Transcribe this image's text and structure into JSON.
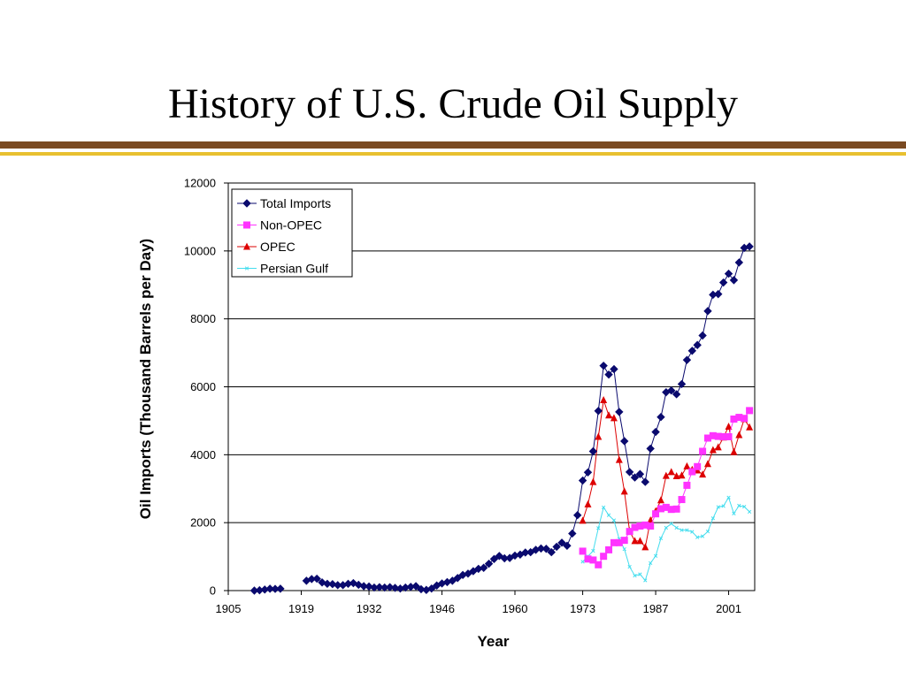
{
  "slide": {
    "title": "History of U.S. Crude Oil Supply",
    "rule_colors": [
      "#7a4a22",
      "#e8c030"
    ]
  },
  "chart_data": {
    "type": "line",
    "title": "",
    "xlabel": "Year",
    "ylabel": "Oil Imports (Thousand Barrels per Day)",
    "xlim": [
      1905,
      2006
    ],
    "ylim": [
      0,
      12000
    ],
    "x_ticks": [
      1905,
      1919,
      1932,
      1946,
      1960,
      1973,
      1987,
      2001
    ],
    "y_ticks": [
      0,
      2000,
      4000,
      6000,
      8000,
      10000,
      12000
    ],
    "grid": "horizontal",
    "legend_position": "top-left",
    "series": [
      {
        "name": "Total Imports",
        "color": "#0a0a6e",
        "marker": "diamond",
        "points": [
          [
            1910,
            0
          ],
          [
            1911,
            10
          ],
          [
            1912,
            30
          ],
          [
            1913,
            55
          ],
          [
            1914,
            50
          ],
          [
            1915,
            55
          ],
          [
            1920,
            290
          ],
          [
            1921,
            340
          ],
          [
            1922,
            350
          ],
          [
            1923,
            240
          ],
          [
            1924,
            200
          ],
          [
            1925,
            190
          ],
          [
            1926,
            160
          ],
          [
            1927,
            160
          ],
          [
            1928,
            200
          ],
          [
            1929,
            220
          ],
          [
            1930,
            170
          ],
          [
            1931,
            130
          ],
          [
            1932,
            120
          ],
          [
            1933,
            90
          ],
          [
            1934,
            100
          ],
          [
            1935,
            90
          ],
          [
            1936,
            100
          ],
          [
            1937,
            80
          ],
          [
            1938,
            60
          ],
          [
            1939,
            90
          ],
          [
            1940,
            110
          ],
          [
            1941,
            130
          ],
          [
            1942,
            40
          ],
          [
            1943,
            20
          ],
          [
            1944,
            60
          ],
          [
            1945,
            150
          ],
          [
            1946,
            210
          ],
          [
            1947,
            250
          ],
          [
            1948,
            290
          ],
          [
            1949,
            370
          ],
          [
            1950,
            460
          ],
          [
            1951,
            500
          ],
          [
            1952,
            570
          ],
          [
            1953,
            640
          ],
          [
            1954,
            670
          ],
          [
            1955,
            790
          ],
          [
            1956,
            930
          ],
          [
            1957,
            1020
          ],
          [
            1958,
            950
          ],
          [
            1959,
            960
          ],
          [
            1960,
            1030
          ],
          [
            1961,
            1060
          ],
          [
            1962,
            1120
          ],
          [
            1963,
            1130
          ],
          [
            1964,
            1200
          ],
          [
            1965,
            1240
          ],
          [
            1966,
            1230
          ],
          [
            1967,
            1130
          ],
          [
            1968,
            1290
          ],
          [
            1969,
            1410
          ],
          [
            1970,
            1320
          ],
          [
            1971,
            1680
          ],
          [
            1972,
            2220
          ],
          [
            1973,
            3240
          ],
          [
            1974,
            3480
          ],
          [
            1975,
            4100
          ],
          [
            1976,
            5290
          ],
          [
            1977,
            6620
          ],
          [
            1978,
            6360
          ],
          [
            1979,
            6520
          ],
          [
            1980,
            5260
          ],
          [
            1981,
            4400
          ],
          [
            1982,
            3490
          ],
          [
            1983,
            3330
          ],
          [
            1984,
            3430
          ],
          [
            1985,
            3200
          ],
          [
            1986,
            4180
          ],
          [
            1987,
            4670
          ],
          [
            1988,
            5110
          ],
          [
            1989,
            5840
          ],
          [
            1990,
            5890
          ],
          [
            1991,
            5780
          ],
          [
            1992,
            6080
          ],
          [
            1993,
            6790
          ],
          [
            1994,
            7060
          ],
          [
            1995,
            7230
          ],
          [
            1996,
            7510
          ],
          [
            1997,
            8230
          ],
          [
            1998,
            8710
          ],
          [
            1999,
            8730
          ],
          [
            2000,
            9070
          ],
          [
            2001,
            9330
          ],
          [
            2002,
            9140
          ],
          [
            2003,
            9660
          ],
          [
            2004,
            10090
          ],
          [
            2005,
            10130
          ]
        ]
      },
      {
        "name": "Non-OPEC",
        "color": "#ff33ff",
        "marker": "square",
        "points": [
          [
            1973,
            1160
          ],
          [
            1974,
            930
          ],
          [
            1975,
            900
          ],
          [
            1976,
            760
          ],
          [
            1977,
            1010
          ],
          [
            1978,
            1200
          ],
          [
            1979,
            1410
          ],
          [
            1980,
            1410
          ],
          [
            1981,
            1480
          ],
          [
            1982,
            1740
          ],
          [
            1983,
            1860
          ],
          [
            1984,
            1900
          ],
          [
            1985,
            1930
          ],
          [
            1986,
            1900
          ],
          [
            1987,
            2260
          ],
          [
            1988,
            2410
          ],
          [
            1989,
            2450
          ],
          [
            1990,
            2390
          ],
          [
            1991,
            2400
          ],
          [
            1992,
            2680
          ],
          [
            1993,
            3100
          ],
          [
            1994,
            3500
          ],
          [
            1995,
            3650
          ],
          [
            1996,
            4100
          ],
          [
            1997,
            4490
          ],
          [
            1998,
            4560
          ],
          [
            1999,
            4540
          ],
          [
            2000,
            4530
          ],
          [
            2001,
            4530
          ],
          [
            2002,
            5050
          ],
          [
            2003,
            5100
          ],
          [
            2004,
            5070
          ],
          [
            2005,
            5300
          ]
        ]
      },
      {
        "name": "OPEC",
        "color": "#dd0000",
        "marker": "triangle",
        "points": [
          [
            1973,
            2060
          ],
          [
            1974,
            2540
          ],
          [
            1975,
            3200
          ],
          [
            1976,
            4530
          ],
          [
            1977,
            5610
          ],
          [
            1978,
            5160
          ],
          [
            1979,
            5080
          ],
          [
            1980,
            3850
          ],
          [
            1981,
            2920
          ],
          [
            1982,
            1750
          ],
          [
            1983,
            1460
          ],
          [
            1984,
            1460
          ],
          [
            1985,
            1280
          ],
          [
            1986,
            2070
          ],
          [
            1987,
            2340
          ],
          [
            1988,
            2660
          ],
          [
            1989,
            3380
          ],
          [
            1990,
            3490
          ],
          [
            1991,
            3370
          ],
          [
            1992,
            3390
          ],
          [
            1993,
            3660
          ],
          [
            1994,
            3560
          ],
          [
            1995,
            3540
          ],
          [
            1996,
            3420
          ],
          [
            1997,
            3730
          ],
          [
            1998,
            4140
          ],
          [
            1999,
            4220
          ],
          [
            2000,
            4510
          ],
          [
            2001,
            4830
          ],
          [
            2002,
            4080
          ],
          [
            2003,
            4580
          ],
          [
            2004,
            5050
          ],
          [
            2005,
            4810
          ]
        ]
      },
      {
        "name": "Persian Gulf",
        "color": "#44ddee",
        "marker": "x",
        "points": [
          [
            1973,
            850
          ],
          [
            1974,
            1010
          ],
          [
            1975,
            1170
          ],
          [
            1976,
            1840
          ],
          [
            1977,
            2450
          ],
          [
            1978,
            2220
          ],
          [
            1979,
            2070
          ],
          [
            1980,
            1520
          ],
          [
            1981,
            1220
          ],
          [
            1982,
            700
          ],
          [
            1983,
            440
          ],
          [
            1984,
            480
          ],
          [
            1985,
            300
          ],
          [
            1986,
            810
          ],
          [
            1987,
            1020
          ],
          [
            1988,
            1540
          ],
          [
            1989,
            1850
          ],
          [
            1990,
            1970
          ],
          [
            1991,
            1850
          ],
          [
            1992,
            1780
          ],
          [
            1993,
            1780
          ],
          [
            1994,
            1730
          ],
          [
            1995,
            1570
          ],
          [
            1996,
            1600
          ],
          [
            1997,
            1740
          ],
          [
            1998,
            2130
          ],
          [
            1999,
            2460
          ],
          [
            2000,
            2490
          ],
          [
            2001,
            2740
          ],
          [
            2002,
            2270
          ],
          [
            2003,
            2500
          ],
          [
            2004,
            2470
          ],
          [
            2005,
            2320
          ]
        ]
      }
    ]
  }
}
